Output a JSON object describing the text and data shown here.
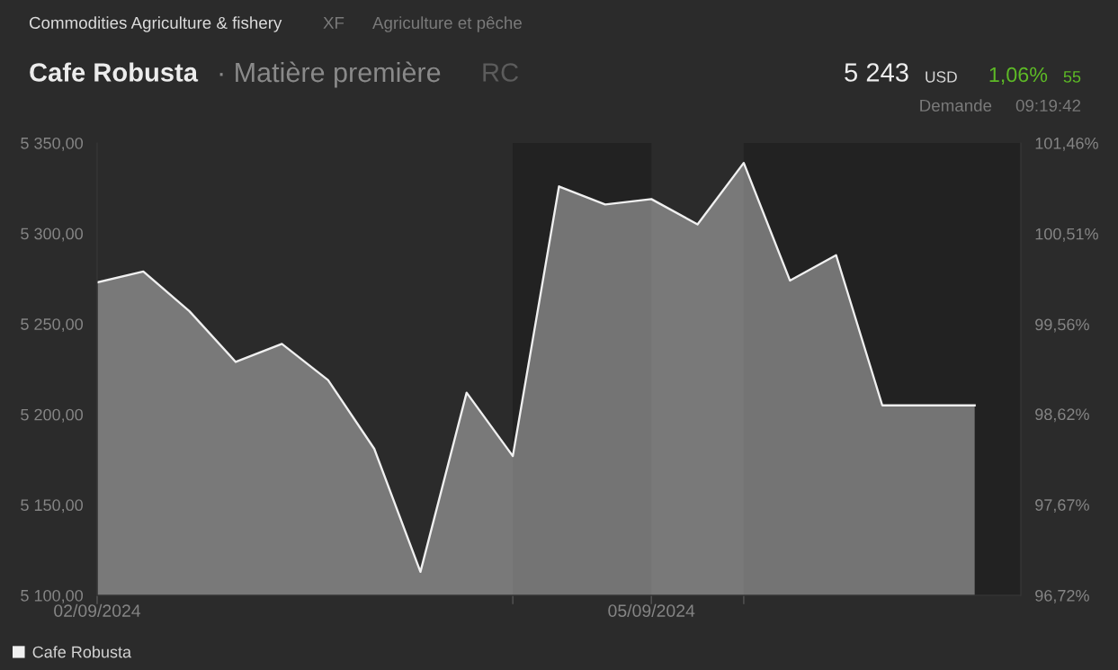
{
  "chart_data": {
    "type": "area",
    "title": "Cafe Robusta",
    "subtitle": "· Matière première",
    "annotations": [
      "Commodities Agriculture & fishery",
      "XF",
      "Agriculture et pêche",
      "RC",
      "5 243",
      "USD",
      "1,06%",
      "55",
      "Demande",
      "09:19:42"
    ],
    "categories": [
      "02/09/2024",
      null,
      null,
      null,
      null,
      null,
      null,
      null,
      null,
      null,
      null,
      null,
      "05/09/2024",
      null,
      null,
      null,
      null,
      null,
      null,
      null
    ],
    "series": [
      {
        "name": "Cafe Robusta",
        "color": "#f0f0f0",
        "values": [
          5273,
          5279,
          5257,
          5229,
          5239,
          5219,
          5181,
          5113,
          5212,
          5177,
          5326,
          5316,
          5319,
          5305,
          5339,
          5274,
          5288,
          5205,
          5205,
          5205
        ]
      }
    ],
    "ylim": [
      5100,
      5350
    ],
    "yticks": [
      {
        "value": 5100,
        "label": "5 100,00"
      },
      {
        "value": 5150,
        "label": "5 150,00"
      },
      {
        "value": 5200,
        "label": "5 200,00"
      },
      {
        "value": 5250,
        "label": "5 250,00"
      },
      {
        "value": 5300,
        "label": "5 300,00"
      },
      {
        "value": 5350,
        "label": "5 350,00"
      }
    ],
    "y2lim": [
      96.72,
      101.46
    ],
    "y2ticks": [
      {
        "value": 96.72,
        "label": "96,72%"
      },
      {
        "value": 97.67,
        "label": "97,67%"
      },
      {
        "value": 98.62,
        "label": "98,62%"
      },
      {
        "value": 99.56,
        "label": "99,56%"
      },
      {
        "value": 100.51,
        "label": "100,51%"
      },
      {
        "value": 101.46,
        "label": "101,46%"
      }
    ],
    "legend": "bottom left"
  }
}
